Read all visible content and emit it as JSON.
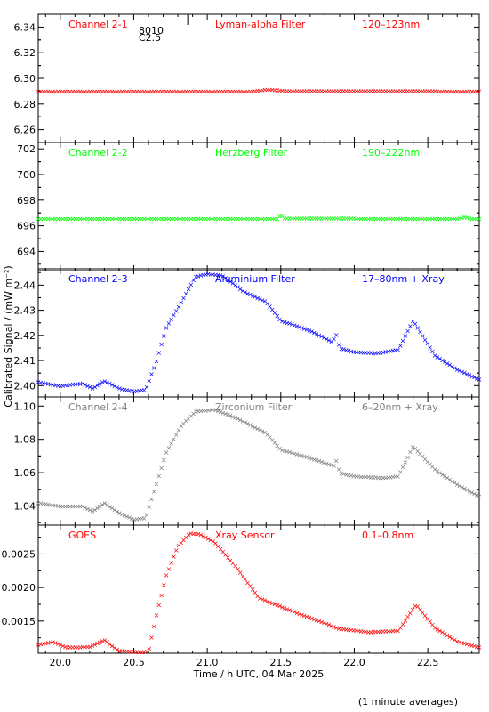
{
  "chart_data": {
    "type": "scatter",
    "marker": "×",
    "xlabel": "Time / h UTC, 04 Mar 2025",
    "ylabel": "Calibrated Signal / (mW m⁻²)",
    "footnote": "(1 minute averages)",
    "xlim": [
      19.85,
      22.85
    ],
    "xticks": [
      20.0,
      20.5,
      21.0,
      21.5,
      22.0,
      22.5
    ],
    "xtick_labels": [
      "20.0",
      "20.5",
      "21.0",
      "21.5",
      "22.0",
      "22.5"
    ],
    "flare_marker": {
      "time": 20.87,
      "class_label": "C2.5",
      "region_label": "8010"
    },
    "panels": [
      {
        "name": "Channel 2-1",
        "filter": "Lyman-alpha Filter",
        "band": "120–123nm",
        "color": "#ff0000",
        "ylim": [
          6.25,
          6.35
        ],
        "yticks": [
          6.26,
          6.28,
          6.3,
          6.32,
          6.34
        ],
        "ytick_labels": [
          "6.26",
          "6.28",
          "6.30",
          "6.32",
          "6.34"
        ],
        "profile": [
          [
            19.85,
            6.29
          ],
          [
            21.3,
            6.29
          ],
          [
            21.42,
            6.2915
          ],
          [
            21.55,
            6.2902
          ],
          [
            22.0,
            6.2903
          ],
          [
            22.85,
            6.29
          ]
        ]
      },
      {
        "name": "Channel 2-2",
        "filter": "Herzberg Filter",
        "band": "190–222nm",
        "color": "#00ff00",
        "ylim": [
          692.5,
          702.5
        ],
        "yticks": [
          694,
          696,
          698,
          700,
          702
        ],
        "ytick_labels": [
          "694",
          "696",
          "698",
          "700",
          "702"
        ],
        "profile": [
          [
            19.85,
            696.55
          ],
          [
            21.48,
            696.55
          ],
          [
            21.5,
            696.9
          ],
          [
            21.52,
            696.6
          ],
          [
            22.7,
            696.55
          ],
          [
            22.75,
            696.7
          ],
          [
            22.8,
            696.55
          ],
          [
            22.85,
            696.55
          ]
        ]
      },
      {
        "name": "Channel 2-3",
        "filter": "Aluminium Filter",
        "band": "17–80nm + Xray",
        "color": "#0000ff",
        "ylim": [
          2.3955,
          2.4465
        ],
        "yticks": [
          2.4,
          2.41,
          2.42,
          2.43,
          2.44
        ],
        "ytick_labels": [
          "2.40",
          "2.41",
          "2.42",
          "2.43",
          "2.44"
        ],
        "profile": [
          [
            19.85,
            2.4015
          ],
          [
            20.0,
            2.4
          ],
          [
            20.15,
            2.401
          ],
          [
            20.22,
            2.399
          ],
          [
            20.3,
            2.402
          ],
          [
            20.4,
            2.399
          ],
          [
            20.5,
            2.3978
          ],
          [
            20.58,
            2.3985
          ],
          [
            20.65,
            2.409
          ],
          [
            20.72,
            2.423
          ],
          [
            20.82,
            2.433
          ],
          [
            20.92,
            2.4435
          ],
          [
            21.0,
            2.4445
          ],
          [
            21.1,
            2.444
          ],
          [
            21.25,
            2.4375
          ],
          [
            21.4,
            2.4335
          ],
          [
            21.5,
            2.426
          ],
          [
            21.7,
            2.422
          ],
          [
            21.85,
            2.4175
          ],
          [
            21.88,
            2.4205
          ],
          [
            21.9,
            2.415
          ],
          [
            22.0,
            2.4135
          ],
          [
            22.15,
            2.413
          ],
          [
            22.3,
            2.4145
          ],
          [
            22.4,
            2.426
          ],
          [
            22.55,
            2.412
          ],
          [
            22.7,
            2.4065
          ],
          [
            22.85,
            2.4025
          ]
        ]
      },
      {
        "name": "Channel 2-4",
        "filter": "Zirconium Filter",
        "band": "6–20nm + Xray",
        "color": "#808080",
        "ylim": [
          1.0285,
          1.1055
        ],
        "yticks": [
          1.04,
          1.06,
          1.08,
          1.1
        ],
        "ytick_labels": [
          "1.04",
          "1.06",
          "1.08",
          "1.10"
        ],
        "profile": [
          [
            19.85,
            1.042
          ],
          [
            20.0,
            1.04
          ],
          [
            20.15,
            1.04
          ],
          [
            20.22,
            1.037
          ],
          [
            20.3,
            1.042
          ],
          [
            20.4,
            1.036
          ],
          [
            20.5,
            1.032
          ],
          [
            20.58,
            1.033
          ],
          [
            20.66,
            1.055
          ],
          [
            20.72,
            1.072
          ],
          [
            20.82,
            1.088
          ],
          [
            20.92,
            1.097
          ],
          [
            21.05,
            1.098
          ],
          [
            21.2,
            1.093
          ],
          [
            21.4,
            1.084
          ],
          [
            21.5,
            1.074
          ],
          [
            21.7,
            1.069
          ],
          [
            21.87,
            1.064
          ],
          [
            21.88,
            1.068
          ],
          [
            21.9,
            1.06
          ],
          [
            22.0,
            1.058
          ],
          [
            22.2,
            1.057
          ],
          [
            22.3,
            1.058
          ],
          [
            22.4,
            1.076
          ],
          [
            22.55,
            1.062
          ],
          [
            22.7,
            1.053
          ],
          [
            22.85,
            1.046
          ]
        ]
      },
      {
        "name": "GOES",
        "filter": "Xray Sensor",
        "band": "0.1–0.8nm",
        "color": "#ff0000",
        "ylim": [
          0.00102,
          0.00293
        ],
        "yticks": [
          0.0015,
          0.002,
          0.0025
        ],
        "ytick_labels": [
          "0.0015",
          "0.0020",
          "0.0025"
        ],
        "profile": [
          [
            19.85,
            0.00115
          ],
          [
            19.95,
            0.00119
          ],
          [
            20.05,
            0.00111
          ],
          [
            20.2,
            0.00112
          ],
          [
            20.3,
            0.00122
          ],
          [
            20.4,
            0.00106
          ],
          [
            20.55,
            0.00104
          ],
          [
            20.6,
            0.00105
          ],
          [
            20.65,
            0.00155
          ],
          [
            20.72,
            0.00218
          ],
          [
            20.8,
            0.00262
          ],
          [
            20.88,
            0.00281
          ],
          [
            20.95,
            0.0028
          ],
          [
            21.05,
            0.00268
          ],
          [
            21.2,
            0.0023
          ],
          [
            21.35,
            0.00185
          ],
          [
            21.5,
            0.00172
          ],
          [
            21.7,
            0.00155
          ],
          [
            21.9,
            0.00139
          ],
          [
            22.1,
            0.00134
          ],
          [
            22.3,
            0.00136
          ],
          [
            22.42,
            0.00175
          ],
          [
            22.55,
            0.0014
          ],
          [
            22.7,
            0.0012
          ],
          [
            22.85,
            0.00111
          ]
        ]
      }
    ]
  }
}
